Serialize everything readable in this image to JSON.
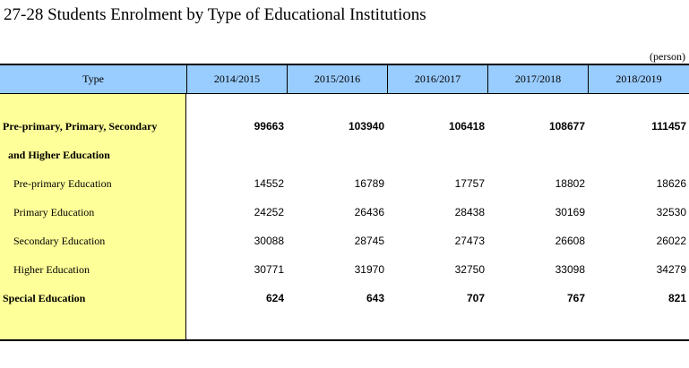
{
  "title": "27-28  Students Enrolment by Type of Educational Institutions",
  "unit": "(person)",
  "headers": [
    "Type",
    "2014/2015",
    "2015/2016",
    "2016/2017",
    "2017/2018",
    "2018/2019"
  ],
  "rows": [
    {
      "label": "Pre-primary, Primary, Secondary",
      "values": [
        "99663",
        "103940",
        "106418",
        "108677",
        "111457"
      ]
    },
    {
      "label": "and Higher Education",
      "values": [
        "",
        "",
        "",
        "",
        ""
      ]
    },
    {
      "label": "Pre-primary Education",
      "values": [
        "14552",
        "16789",
        "17757",
        "18802",
        "18626"
      ]
    },
    {
      "label": "Primary Education",
      "values": [
        "24252",
        "26436",
        "28438",
        "30169",
        "32530"
      ]
    },
    {
      "label": "Secondary Education",
      "values": [
        "30088",
        "28745",
        "27473",
        "26608",
        "26022"
      ]
    },
    {
      "label": "Higher Education",
      "values": [
        "30771",
        "31970",
        "32750",
        "33098",
        "34279"
      ]
    },
    {
      "label": "Special Education",
      "values": [
        "624",
        "643",
        "707",
        "767",
        "821"
      ]
    }
  ]
}
